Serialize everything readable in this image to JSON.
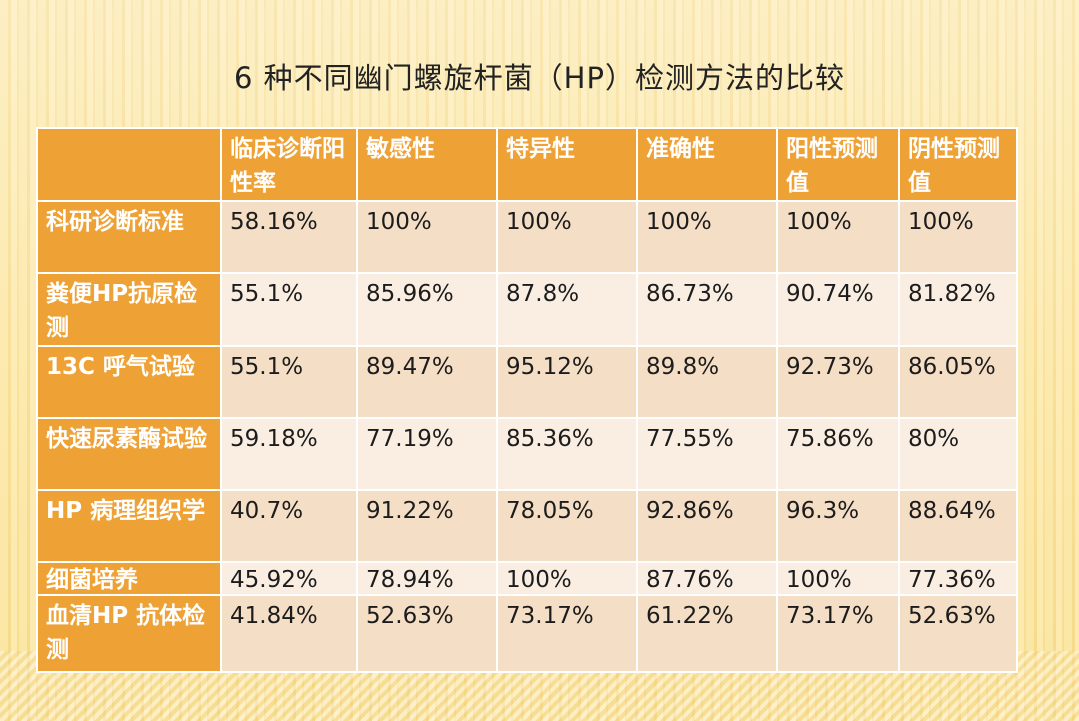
{
  "title": "6 种不同幽门螺旋杆菌（HP）检测方法的比较",
  "table": {
    "columns": [
      "",
      "临床诊断阳性率",
      "敏感性",
      "特异性",
      "准确性",
      "阳性预测值",
      "阴性预测值"
    ],
    "rows": [
      {
        "label": "科研诊断标准",
        "cells": [
          "58.16%",
          "100%",
          "100%",
          "100%",
          "100%",
          "100%"
        ]
      },
      {
        "label": "粪便HP抗原检测",
        "cells": [
          "55.1%",
          "85.96%",
          "87.8%",
          "86.73%",
          "90.74%",
          "81.82%"
        ]
      },
      {
        "label": "13C 呼气试验",
        "cells": [
          "55.1%",
          "89.47%",
          "95.12%",
          "89.8%",
          "92.73%",
          "86.05%"
        ]
      },
      {
        "label": "快速尿素酶试验",
        "cells": [
          "59.18%",
          "77.19%",
          "85.36%",
          "77.55%",
          "75.86%",
          "80%"
        ]
      },
      {
        "label": "HP 病理组织学",
        "cells": [
          "40.7%",
          "91.22%",
          "78.05%",
          "92.86%",
          "96.3%",
          "88.64%"
        ]
      },
      {
        "label": "细菌培养",
        "cells": [
          "45.92%",
          "78.94%",
          "100%",
          "87.76%",
          "100%",
          "77.36%"
        ]
      },
      {
        "label": "血清HP 抗体检测",
        "cells": [
          "41.84%",
          "52.63%",
          "73.17%",
          "61.22%",
          "73.17%",
          "52.63%"
        ]
      }
    ]
  },
  "colors": {
    "header": "#eea236",
    "row_dark": "#f4dec5",
    "row_light": "#faeee3",
    "background": "#fbe6a3"
  }
}
